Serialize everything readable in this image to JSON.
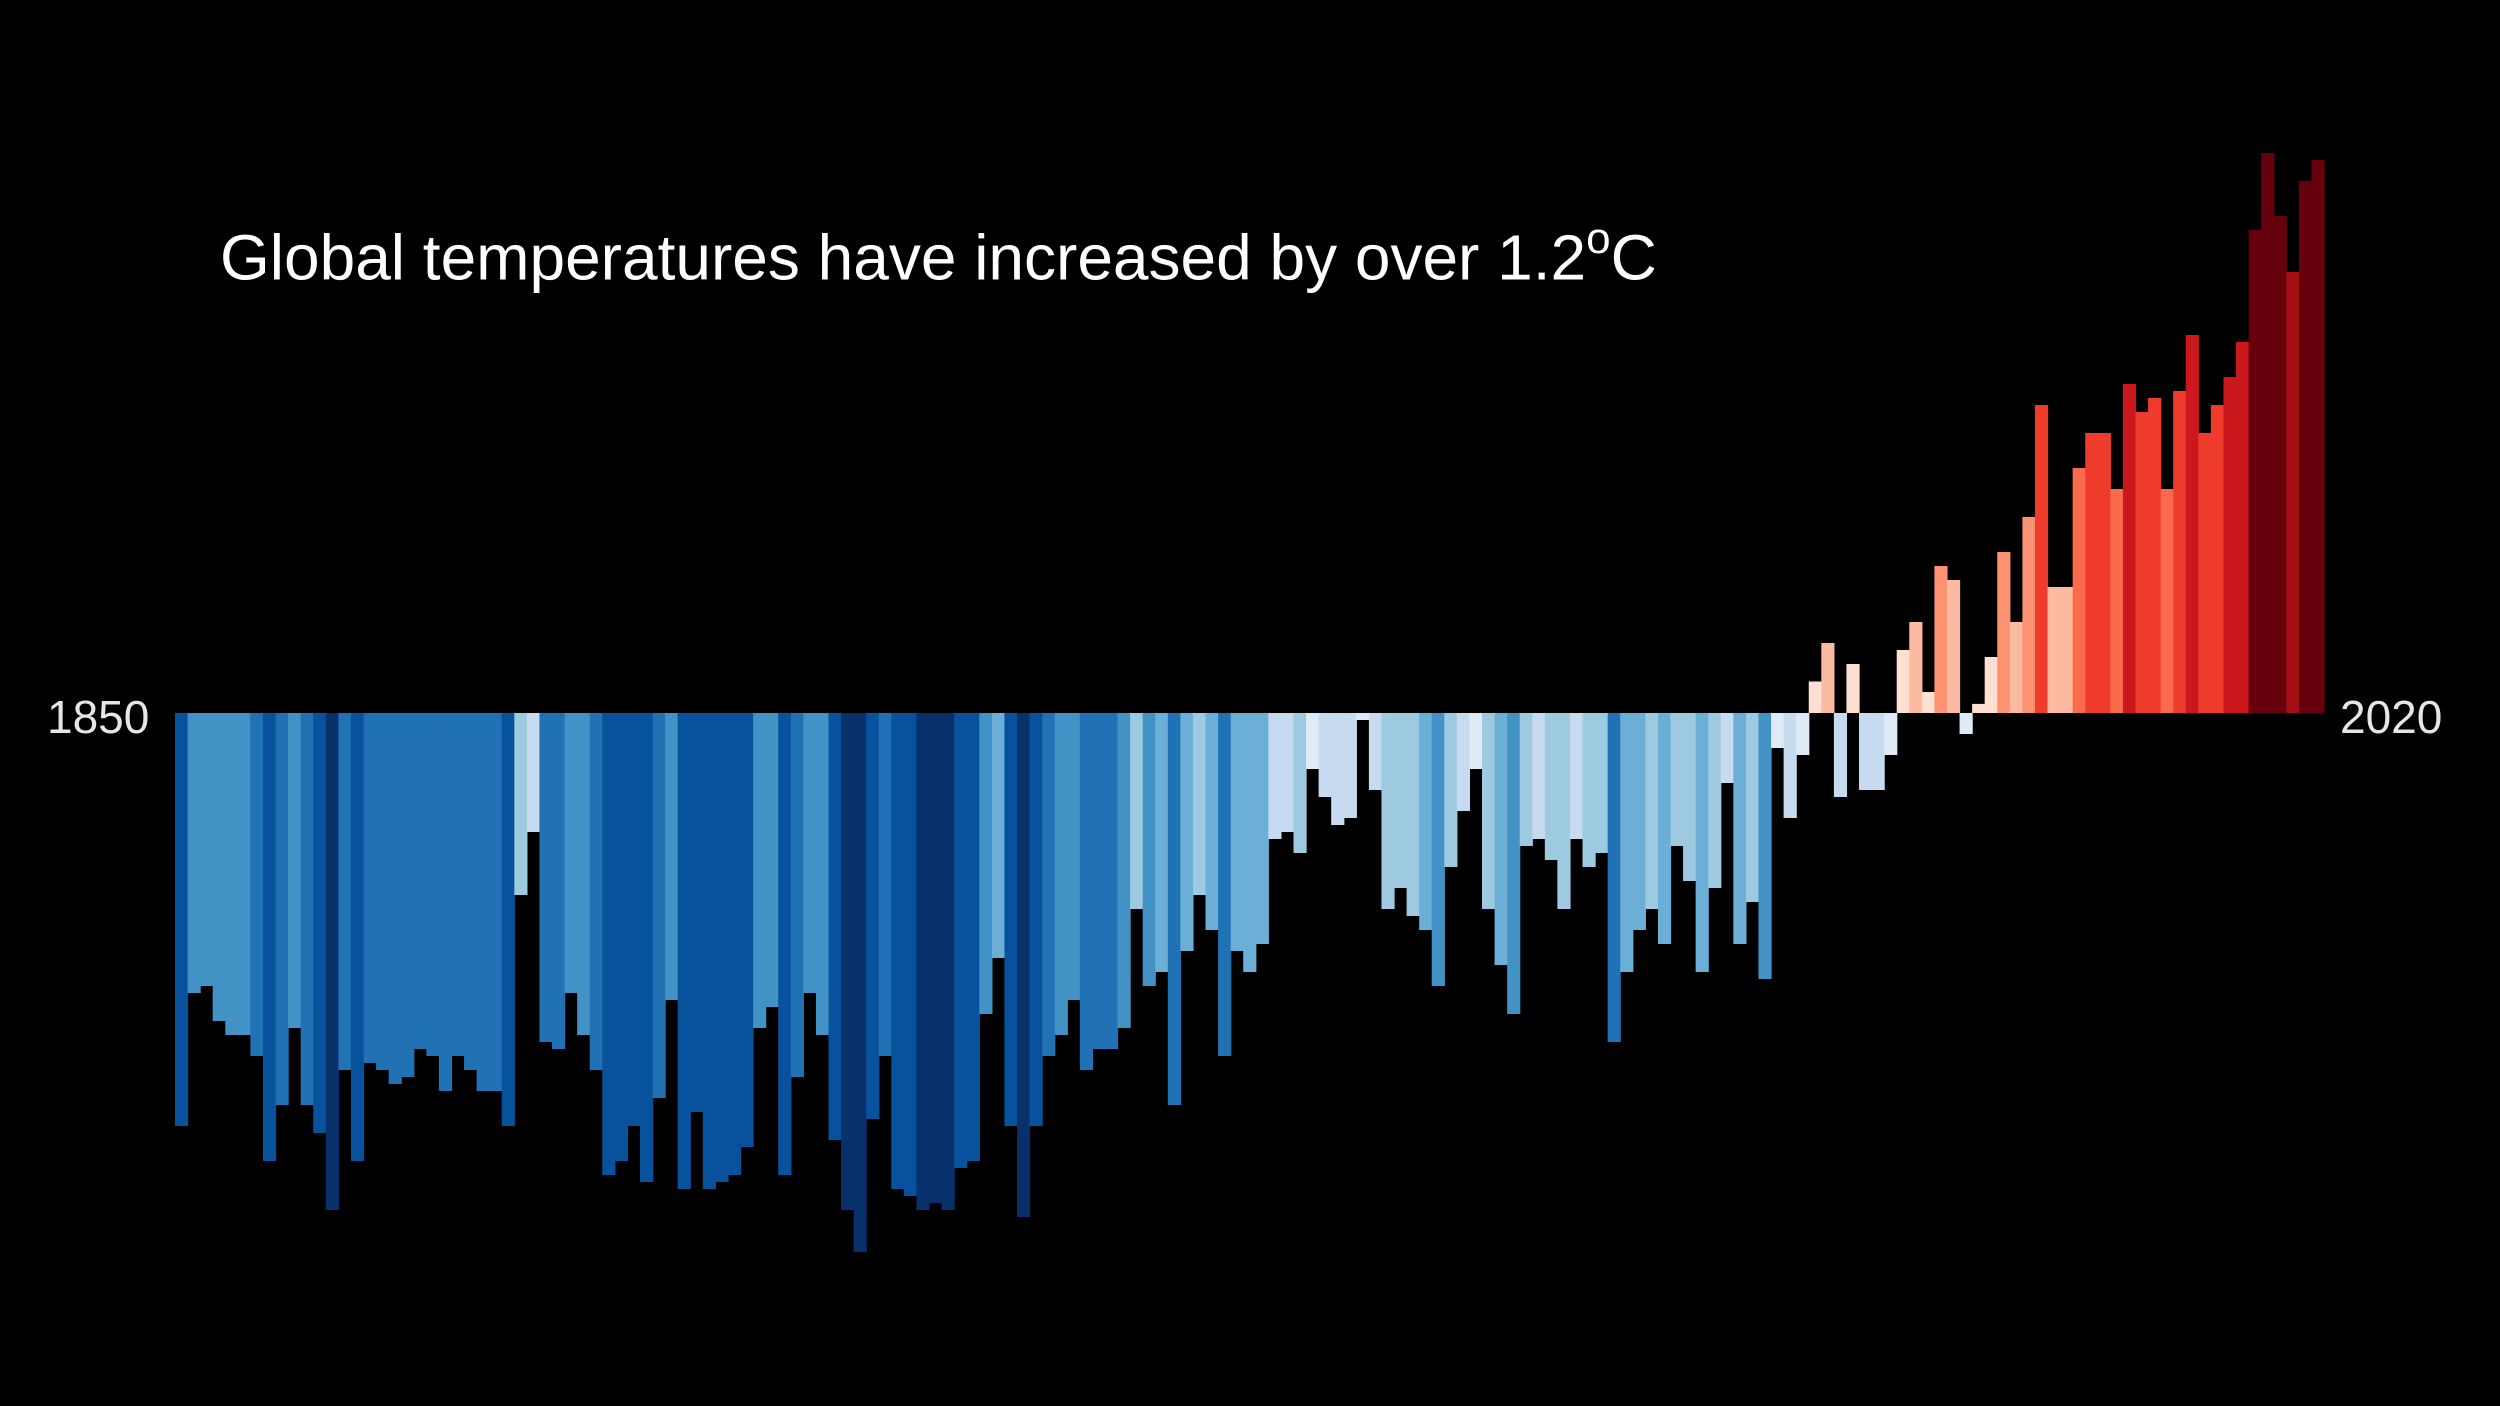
{
  "chart_data": {
    "type": "bar",
    "title": "Global temperatures have increased by over 1.2",
    "title_unit_degree": "o",
    "title_unit": "C",
    "x_start_label": "1850",
    "x_end_label": "2020",
    "x_start": 1850,
    "x_end": 2020,
    "ylabel": "",
    "ylim": [
      -0.8,
      0.85
    ],
    "grid": false,
    "legend": "none",
    "background": "#000000",
    "palette_blues": [
      "#08306b",
      "#08519c",
      "#2171b5",
      "#4292c6",
      "#6baed6",
      "#9ecae1",
      "#c6dbef",
      "#deebf7"
    ],
    "palette_reds": [
      "#fee0d2",
      "#fcbba1",
      "#fc9272",
      "#fb6a4a",
      "#ef3b2c",
      "#cb181d",
      "#a50f15",
      "#67000d"
    ],
    "values": [
      -0.59,
      -0.4,
      -0.39,
      -0.44,
      -0.46,
      -0.46,
      -0.49,
      -0.64,
      -0.56,
      -0.45,
      -0.56,
      -0.6,
      -0.71,
      -0.51,
      -0.64,
      -0.5,
      -0.51,
      -0.53,
      -0.52,
      -0.48,
      -0.49,
      -0.54,
      -0.49,
      -0.51,
      -0.54,
      -0.54,
      -0.59,
      -0.26,
      -0.17,
      -0.47,
      -0.48,
      -0.4,
      -0.46,
      -0.51,
      -0.66,
      -0.64,
      -0.59,
      -0.67,
      -0.55,
      -0.41,
      -0.68,
      -0.57,
      -0.68,
      -0.67,
      -0.66,
      -0.62,
      -0.45,
      -0.42,
      -0.66,
      -0.52,
      -0.4,
      -0.46,
      -0.61,
      -0.71,
      -0.77,
      -0.58,
      -0.49,
      -0.68,
      -0.69,
      -0.71,
      -0.7,
      -0.71,
      -0.65,
      -0.64,
      -0.43,
      -0.35,
      -0.59,
      -0.72,
      -0.59,
      -0.49,
      -0.46,
      -0.41,
      -0.51,
      -0.48,
      -0.48,
      -0.45,
      -0.28,
      -0.39,
      -0.37,
      -0.56,
      -0.34,
      -0.26,
      -0.31,
      -0.49,
      -0.34,
      -0.37,
      -0.33,
      -0.18,
      -0.17,
      -0.2,
      -0.08,
      -0.12,
      -0.16,
      -0.15,
      -0.01,
      -0.11,
      -0.28,
      -0.25,
      -0.29,
      -0.31,
      -0.39,
      -0.22,
      -0.14,
      -0.08,
      -0.28,
      -0.36,
      -0.43,
      -0.19,
      -0.18,
      -0.21,
      -0.28,
      -0.18,
      -0.22,
      -0.2,
      -0.47,
      -0.37,
      -0.31,
      -0.28,
      -0.33,
      -0.19,
      -0.24,
      -0.37,
      -0.25,
      -0.1,
      -0.33,
      -0.27,
      -0.38,
      -0.05,
      -0.15,
      -0.06,
      0.045,
      0.1,
      -0.12,
      0.07,
      -0.11,
      -0.11,
      -0.06,
      0.09,
      0.13,
      0.03,
      0.21,
      0.19,
      -0.03,
      0.013,
      0.08,
      0.23,
      0.13,
      0.28,
      0.44,
      0.18,
      0.18,
      0.35,
      0.4,
      0.4,
      0.32,
      0.47,
      0.43,
      0.45,
      0.32,
      0.46,
      0.54,
      0.4,
      0.44,
      0.48,
      0.53,
      0.69,
      0.8,
      0.71,
      0.63,
      0.76,
      0.79
    ]
  }
}
